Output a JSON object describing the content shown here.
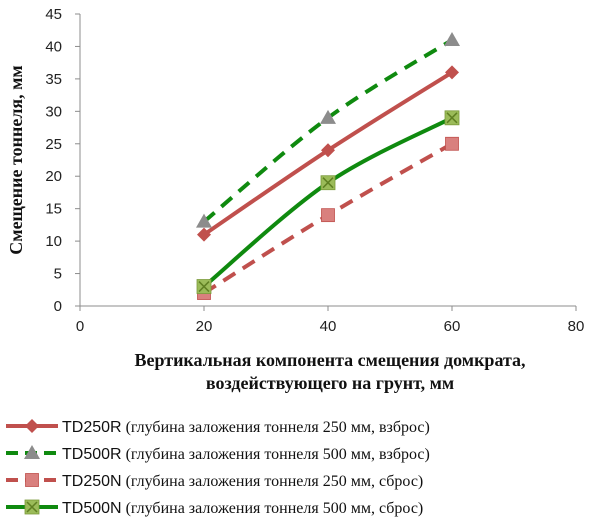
{
  "chart_data": {
    "type": "line",
    "xlabel_line1": "Вертикальная компонента смещения домкрата,",
    "xlabel_line2": "воздействующего на грунт, мм",
    "ylabel": "Смещение тоннеля, мм",
    "xlim": [
      0,
      80
    ],
    "ylim": [
      0,
      45
    ],
    "xticks": [
      "0",
      "20",
      "40",
      "60",
      "80"
    ],
    "yticks": [
      "0",
      "5",
      "10",
      "15",
      "20",
      "25",
      "30",
      "35",
      "40",
      "45"
    ],
    "grid": false,
    "legend_position": "bottom",
    "series": [
      {
        "name": "TD250R",
        "description": "(глубина заложения тоннеля 250 мм, взброс)",
        "x": [
          20,
          40,
          60
        ],
        "y": [
          11,
          24,
          36
        ],
        "color": "#c0504d",
        "line_style": "solid",
        "marker": "diamond",
        "marker_color": "#c0504d"
      },
      {
        "name": "TD500R",
        "description": "(глубина заложения тоннеля 500 мм, взброс)",
        "x": [
          20,
          40,
          60
        ],
        "y": [
          13,
          29,
          41
        ],
        "color": "#0f8a0f",
        "line_style": "dashed",
        "marker": "triangle",
        "marker_color": "#8c8c8c"
      },
      {
        "name": "TD250N",
        "description": "(глубина заложения тоннеля 250 мм, сброс)",
        "x": [
          20,
          40,
          60
        ],
        "y": [
          2,
          14,
          25
        ],
        "color": "#c0504d",
        "line_style": "dashed",
        "marker": "square",
        "marker_color": "#d9807e"
      },
      {
        "name": "TD500N",
        "description": "(глубина заложения тоннеля 500 мм, сброс)",
        "x": [
          20,
          40,
          60
        ],
        "y": [
          3,
          19,
          29
        ],
        "color": "#0f8a0f",
        "line_style": "solid",
        "marker": "x-square",
        "marker_color": "#9bbb59"
      }
    ]
  }
}
